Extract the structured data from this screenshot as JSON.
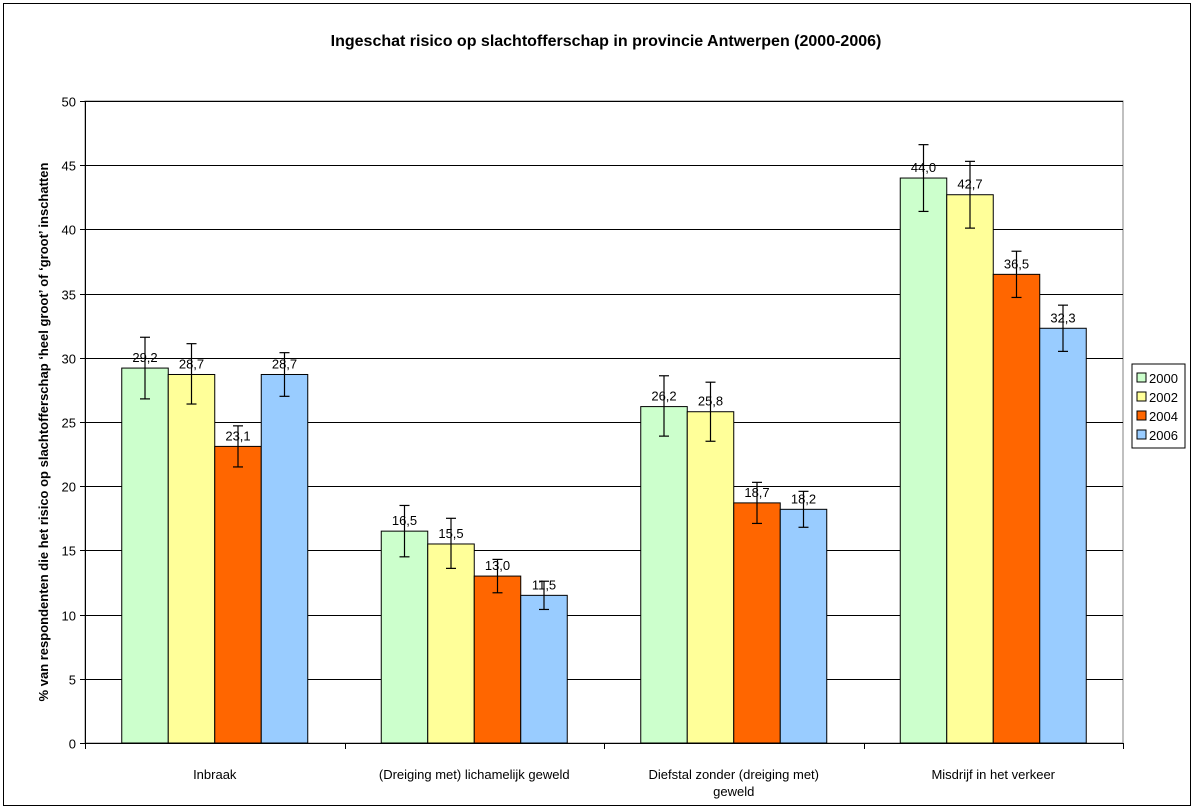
{
  "chart_data": {
    "type": "bar",
    "title": "Ingeschat risico op slachtofferschap in provincie Antwerpen (2000-2006)",
    "ylabel": "% van respondenten die het risico op slachtofferschap ‘heel groot’ of ‘groot’ inschatten",
    "xlabel": "",
    "ylim": [
      0,
      50
    ],
    "yticks": [
      0,
      5,
      10,
      15,
      20,
      25,
      30,
      35,
      40,
      45,
      50
    ],
    "grid": true,
    "legend_position": "right",
    "categories": [
      [
        "Inbraak"
      ],
      [
        "(Dreiging met) lichamelijk geweld"
      ],
      [
        "Diefstal zonder (dreiging met)",
        "geweld"
      ],
      [
        "Misdrijf in het verkeer"
      ]
    ],
    "series": [
      {
        "name": "2000",
        "color": "#ccffcc",
        "values": [
          29.2,
          16.5,
          26.2,
          44.0
        ],
        "labels": [
          "29,2",
          "16,5",
          "26,2",
          "44,0"
        ],
        "err_low": [
          26.8,
          14.5,
          23.9,
          41.4
        ],
        "err_high": [
          31.6,
          18.5,
          28.6,
          46.6
        ]
      },
      {
        "name": "2002",
        "color": "#ffff99",
        "values": [
          28.7,
          15.5,
          25.8,
          42.7
        ],
        "labels": [
          "28,7",
          "15,5",
          "25,8",
          "42,7"
        ],
        "err_low": [
          26.4,
          13.6,
          23.5,
          40.1
        ],
        "err_high": [
          31.1,
          17.5,
          28.1,
          45.3
        ]
      },
      {
        "name": "2004",
        "color": "#ff6600",
        "values": [
          23.1,
          13.0,
          18.7,
          36.5
        ],
        "labels": [
          "23,1",
          "13,0",
          "18,7",
          "36,5"
        ],
        "err_low": [
          21.5,
          11.7,
          17.1,
          34.7
        ],
        "err_high": [
          24.7,
          14.3,
          20.3,
          38.3
        ]
      },
      {
        "name": "2006",
        "color": "#99ccff",
        "values": [
          28.7,
          11.5,
          18.2,
          32.3
        ],
        "labels": [
          "28,7",
          "11,5",
          "18,2",
          "32,3"
        ],
        "err_low": [
          27.0,
          10.4,
          16.8,
          30.5
        ],
        "err_high": [
          30.4,
          12.6,
          19.6,
          34.1
        ]
      }
    ]
  }
}
